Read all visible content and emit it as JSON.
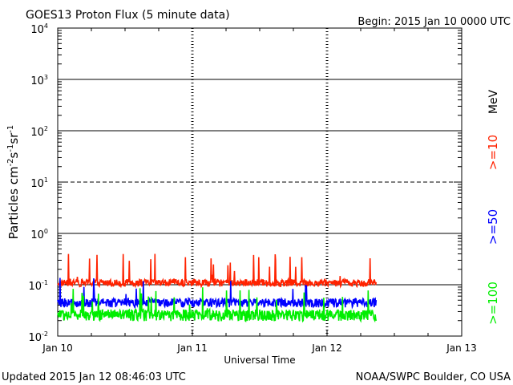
{
  "header": {
    "title": "GOES13 Proton Flux (5 minute data)",
    "begin": "Begin: 2015 Jan 10 0000 UTC"
  },
  "footer": {
    "updated": "Updated 2015 Jan 12 08:46:03 UTC",
    "credit": "NOAA/SWPC Boulder, CO USA"
  },
  "chart_data": {
    "type": "line",
    "title": "GOES13 Proton Flux (5 minute data)",
    "xlabel": "Universal Time",
    "ylabel": "Particles cm-2 s-1 sr-1",
    "y_scale": "log",
    "ylim": [
      0.01,
      10000
    ],
    "y_ticks": [
      {
        "value": 0.01,
        "base": "10",
        "exp": "-2"
      },
      {
        "value": 0.1,
        "base": "10",
        "exp": "-1"
      },
      {
        "value": 1,
        "base": "10",
        "exp": "0"
      },
      {
        "value": 10,
        "base": "10",
        "exp": "1"
      },
      {
        "value": 100,
        "base": "10",
        "exp": "2"
      },
      {
        "value": 1000,
        "base": "10",
        "exp": "3"
      },
      {
        "value": 10000,
        "base": "10",
        "exp": "4"
      }
    ],
    "x_ticks": [
      "Jan 10",
      "Jan 11",
      "Jan 12",
      "Jan 13"
    ],
    "xlim": [
      "2015-01-10 00:00",
      "2015-01-13 00:00"
    ],
    "data_end": "2015-01-12 08:45",
    "sample_interval_minutes": 5,
    "reference_lines": [
      {
        "value": 10,
        "style": "dashed"
      },
      {
        "value": 0.1,
        "style": "solid"
      }
    ],
    "unit_label": "MeV",
    "series": [
      {
        "name": ">=10",
        "color": "#ff2200",
        "typical": 0.12,
        "min": 0.08,
        "max": 0.4
      },
      {
        "name": ">=50",
        "color": "#0000ff",
        "typical": 0.05,
        "min": 0.03,
        "max": 0.15
      },
      {
        "name": ">=100",
        "color": "#00ee00",
        "typical": 0.03,
        "min": 0.015,
        "max": 0.09
      }
    ]
  }
}
